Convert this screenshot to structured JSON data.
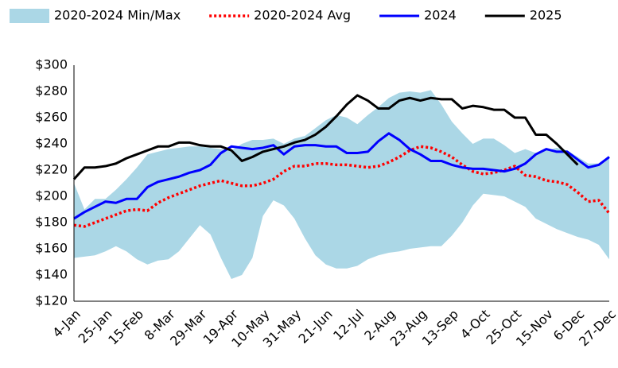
{
  "chart_data": {
    "type": "line",
    "categories": [
      "4-Jan",
      null,
      null,
      "25-Jan",
      null,
      null,
      "15-Feb",
      null,
      null,
      "8-Mar",
      null,
      null,
      "29-Mar",
      null,
      null,
      "19-Apr",
      null,
      null,
      "10-May",
      null,
      null,
      "31-May",
      null,
      null,
      "21-Jun",
      null,
      null,
      "12-Jul",
      null,
      null,
      "2-Aug",
      null,
      null,
      "23-Aug",
      null,
      null,
      "13-Sep",
      null,
      null,
      "4-Oct",
      null,
      null,
      "25-Oct",
      null,
      null,
      "15-Nov",
      null,
      null,
      "6-Dec",
      null,
      null,
      "27-Dec"
    ],
    "ylim": [
      120,
      300
    ],
    "yticks": [
      {
        "value": 120,
        "label": "$120"
      },
      {
        "value": 140,
        "label": "$140"
      },
      {
        "value": 160,
        "label": "$160"
      },
      {
        "value": 180,
        "label": "$180"
      },
      {
        "value": 200,
        "label": "$200"
      },
      {
        "value": 220,
        "label": "$220"
      },
      {
        "value": 240,
        "label": "$240"
      },
      {
        "value": 260,
        "label": "$260"
      },
      {
        "value": 280,
        "label": "$280"
      },
      {
        "value": 300,
        "label": "$300"
      }
    ],
    "grid": false,
    "series": [
      {
        "name": "2020-2024 Min/Max",
        "color": "#abd7e6",
        "style": "band",
        "high": [
          210,
          190,
          198,
          198,
          205,
          213,
          222,
          232,
          234,
          236,
          237,
          238,
          238,
          237,
          236,
          235,
          240,
          243,
          243,
          244,
          240,
          244,
          246,
          252,
          258,
          262,
          260,
          255,
          262,
          268,
          275,
          279,
          280,
          279,
          281,
          270,
          257,
          248,
          240,
          244,
          244,
          239,
          233,
          236,
          233,
          235,
          237,
          235,
          230,
          225,
          225,
          230
        ],
        "low": [
          153,
          154,
          155,
          158,
          162,
          158,
          152,
          148,
          151,
          152,
          158,
          168,
          178,
          171,
          153,
          137,
          140,
          153,
          185,
          197,
          193,
          183,
          168,
          155,
          148,
          145,
          145,
          147,
          152,
          155,
          157,
          158,
          160,
          161,
          162,
          162,
          170,
          180,
          193,
          202,
          201,
          200,
          196,
          192,
          183,
          179,
          175,
          172,
          169,
          167,
          163,
          152
        ]
      },
      {
        "name": "2020-2024 Avg",
        "color": "#ff0000",
        "style": "dotted",
        "values": [
          178,
          177,
          180,
          183,
          186,
          189,
          190,
          189,
          195,
          199,
          202,
          205,
          208,
          210,
          212,
          210,
          208,
          208,
          210,
          213,
          219,
          223,
          223,
          225,
          225,
          224,
          224,
          223,
          222,
          223,
          226,
          230,
          235,
          238,
          237,
          234,
          230,
          224,
          219,
          217,
          218,
          220,
          223,
          216,
          215,
          212,
          211,
          209,
          203,
          196,
          197,
          187
        ]
      },
      {
        "name": "2024",
        "color": "#0000ff",
        "style": "solid",
        "values": [
          183,
          188,
          192,
          196,
          195,
          198,
          198,
          207,
          211,
          213,
          215,
          218,
          220,
          224,
          233,
          238,
          237,
          236,
          237,
          239,
          232,
          238,
          239,
          239,
          238,
          238,
          233,
          233,
          234,
          242,
          248,
          243,
          236,
          232,
          227,
          227,
          224,
          222,
          221,
          221,
          220,
          219,
          221,
          225,
          232,
          236,
          234,
          234,
          228,
          222,
          224,
          230
        ]
      },
      {
        "name": "2025",
        "color": "#000000",
        "style": "solid",
        "values": [
          213,
          222,
          222,
          223,
          225,
          229,
          232,
          235,
          238,
          238,
          241,
          241,
          239,
          238,
          238,
          235,
          227,
          230,
          234,
          236,
          238,
          241,
          243,
          247,
          253,
          261,
          270,
          277,
          273,
          267,
          267,
          273,
          275,
          273,
          275,
          274,
          274,
          267,
          269,
          268,
          266,
          266,
          260,
          260,
          247,
          247,
          240,
          232,
          224,
          null,
          null,
          null
        ]
      }
    ]
  }
}
